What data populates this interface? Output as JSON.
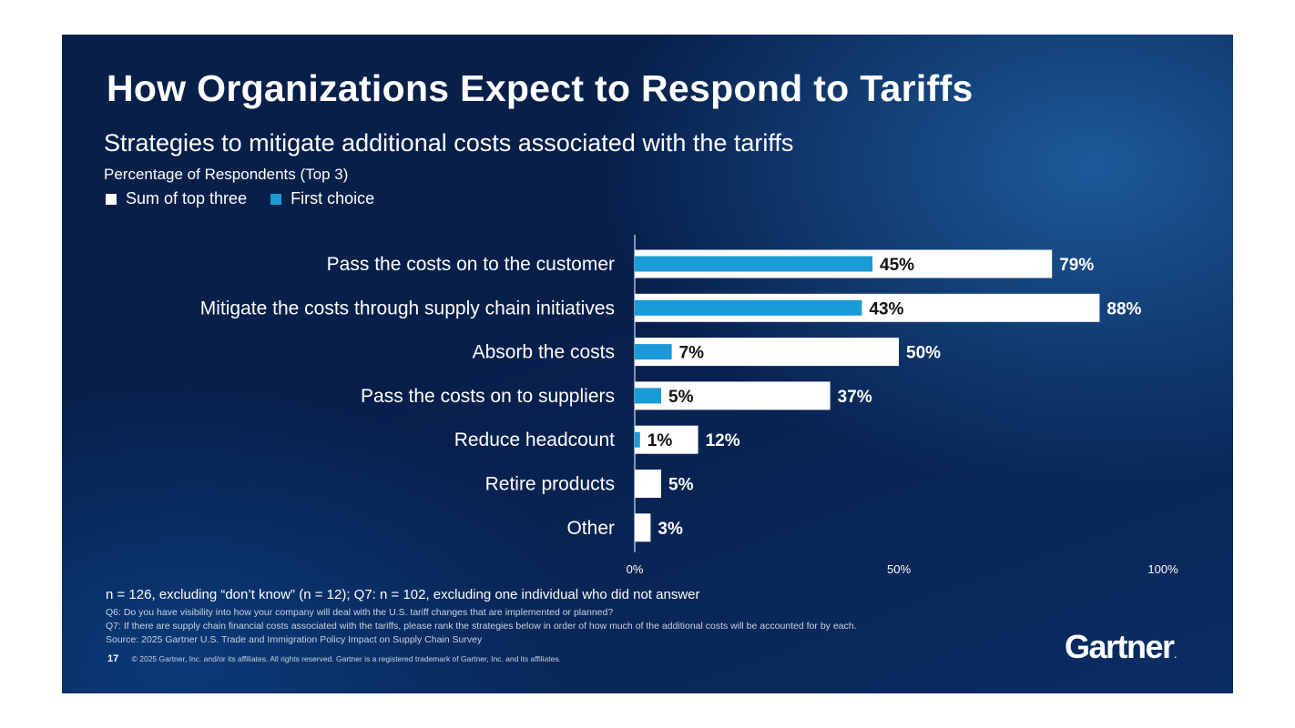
{
  "title": "How Organizations Expect to Respond to Tariffs",
  "subtitle": "Strategies to mitigate additional costs associated with the tariffs",
  "colors": {
    "sum": "#ffffff",
    "first": "#1a9ad6",
    "axis": "#7b93b5"
  },
  "chart_data": {
    "type": "bar",
    "orientation": "horizontal",
    "ylabel": "Percentage of Respondents (Top 3)",
    "categories": [
      "Pass the costs on to the customer",
      "Mitigate the costs through supply chain initiatives",
      "Absorb the costs",
      "Pass the costs on to suppliers",
      "Reduce headcount",
      "Retire products",
      "Other"
    ],
    "series": [
      {
        "name": "Sum of top three",
        "values": [
          79,
          88,
          50,
          37,
          12,
          5,
          3
        ],
        "labels": [
          "79%",
          "88%",
          "50%",
          "37%",
          "12%",
          "5%",
          "3%"
        ]
      },
      {
        "name": "First choice",
        "values": [
          45,
          43,
          7,
          5,
          1,
          null,
          null
        ],
        "labels": [
          "45%",
          "43%",
          "7%",
          "5%",
          "1%",
          null,
          null
        ]
      }
    ],
    "xlim": [
      0,
      100
    ],
    "xticks": [
      0,
      50,
      100
    ],
    "xtick_labels": [
      "0%",
      "50%",
      "100%"
    ],
    "legend_position": "top-left",
    "grid": false
  },
  "notes": {
    "n": "n = 126, excluding “don’t know” (n = 12); Q7: n = 102, excluding one individual who did not answer",
    "q6": "Q6: Do you have visibility into how your company will deal with the U.S. tariff changes that are implemented or planned?",
    "q7": "Q7: If there are supply chain financial costs associated with the tariffs, please rank the strategies below in order of how much of the additional costs will be accounted for by each.",
    "source": "Source: 2025 Gartner U.S. Trade and Immigration Policy Impact on Supply Chain Survey"
  },
  "footer": {
    "page": "17",
    "copyright": "© 2025 Gartner, Inc. and/or its affiliates. All rights reserved. Gartner is a registered trademark of Gartner, Inc. and its affiliates."
  },
  "logo": {
    "text": "Gartner",
    "mark": "."
  }
}
